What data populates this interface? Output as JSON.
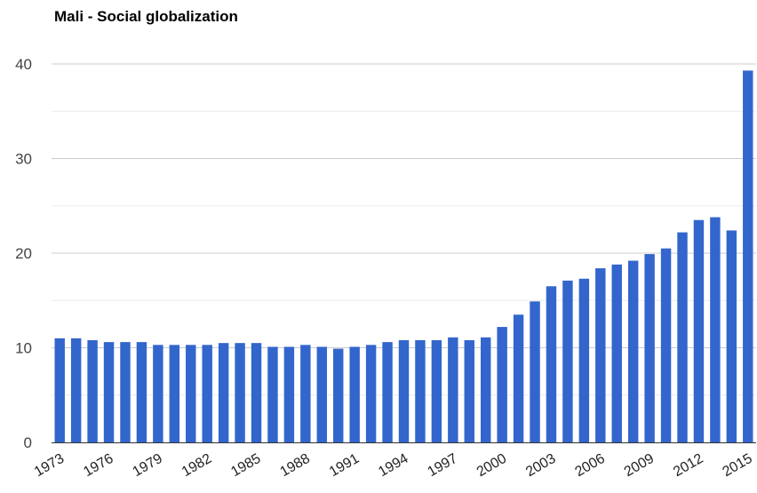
{
  "chart_data": {
    "type": "bar",
    "title": "Mali - Social globalization",
    "xlabel": "",
    "ylabel": "",
    "ylim": [
      0,
      40
    ],
    "yticks": [
      "0",
      "10",
      "20",
      "30",
      "40"
    ],
    "xtick_labels": [
      "1973",
      "1976",
      "1979",
      "1982",
      "1985",
      "1988",
      "1991",
      "1994",
      "1997",
      "2000",
      "2003",
      "2006",
      "2009",
      "2012",
      "2015"
    ],
    "grid": true,
    "legend": "none",
    "bar_color": "#3366cc",
    "categories": [
      "1973",
      "1974",
      "1975",
      "1976",
      "1977",
      "1978",
      "1979",
      "1980",
      "1981",
      "1982",
      "1983",
      "1984",
      "1985",
      "1986",
      "1987",
      "1988",
      "1989",
      "1990",
      "1991",
      "1992",
      "1993",
      "1994",
      "1995",
      "1996",
      "1997",
      "1998",
      "1999",
      "2000",
      "2001",
      "2002",
      "2003",
      "2004",
      "2005",
      "2006",
      "2007",
      "2008",
      "2009",
      "2010",
      "2011",
      "2012",
      "2013",
      "2014",
      "2015"
    ],
    "values": [
      11.0,
      11.0,
      10.8,
      10.6,
      10.6,
      10.6,
      10.3,
      10.3,
      10.3,
      10.3,
      10.5,
      10.5,
      10.5,
      10.1,
      10.1,
      10.3,
      10.1,
      9.9,
      10.1,
      10.3,
      10.6,
      10.8,
      10.8,
      10.8,
      11.1,
      10.8,
      11.1,
      12.2,
      13.5,
      14.9,
      16.5,
      17.1,
      17.3,
      18.4,
      18.8,
      19.2,
      19.9,
      20.5,
      22.2,
      23.5,
      23.8,
      22.4,
      39.3
    ]
  }
}
